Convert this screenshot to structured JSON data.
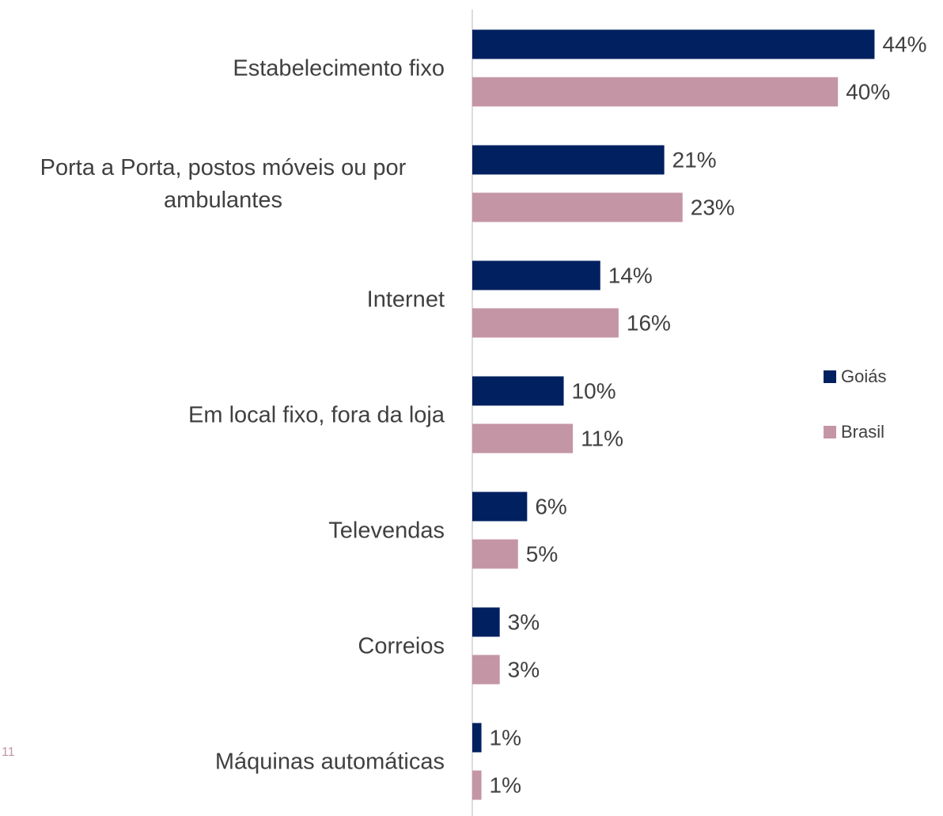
{
  "chart_data": {
    "type": "hbar",
    "categories": [
      "Estabelecimento fixo",
      "Porta a Porta, postos móveis ou por ambulantes",
      "Internet",
      "Em local fixo,  fora da loja",
      "Televendas",
      "Correios",
      "Máquinas automáticas"
    ],
    "series": [
      {
        "name": "Goiás",
        "color": "#002060",
        "values": [
          44,
          21,
          14,
          10,
          6,
          3,
          1
        ]
      },
      {
        "name": "Brasil",
        "color": "#c495a5",
        "values": [
          40,
          23,
          16,
          11,
          5,
          3,
          1
        ]
      }
    ],
    "value_labels": [
      [
        "44%",
        "21%",
        "14%",
        "10%",
        "6%",
        "3%",
        "1%"
      ],
      [
        "40%",
        "23%",
        "16%",
        "11%",
        "5%",
        "3%",
        "1%"
      ]
    ],
    "xlim": [
      0,
      45
    ],
    "legend": "right"
  },
  "page_number": "11"
}
